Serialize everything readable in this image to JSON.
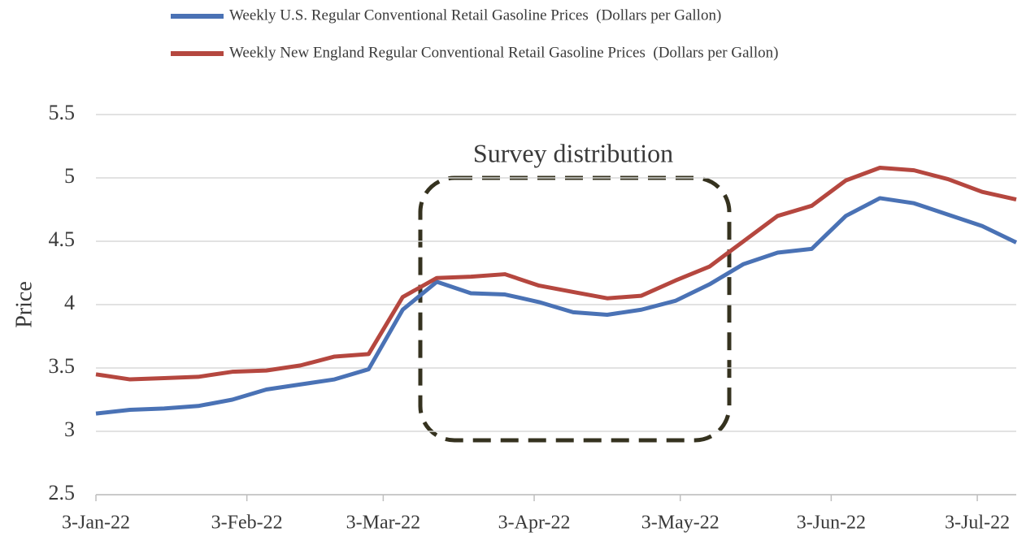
{
  "chart_data": {
    "type": "line",
    "y_label": "Price",
    "annotation": "Survey distribution",
    "x": [
      "2022-01-03",
      "2022-01-10",
      "2022-01-17",
      "2022-01-24",
      "2022-01-31",
      "2022-02-07",
      "2022-02-14",
      "2022-02-21",
      "2022-02-28",
      "2022-03-07",
      "2022-03-14",
      "2022-03-21",
      "2022-03-28",
      "2022-04-04",
      "2022-04-11",
      "2022-04-18",
      "2022-04-25",
      "2022-05-02",
      "2022-05-09",
      "2022-05-16",
      "2022-05-23",
      "2022-05-30",
      "2022-06-06",
      "2022-06-13",
      "2022-06-20",
      "2022-06-27",
      "2022-07-04",
      "2022-07-11"
    ],
    "series": [
      {
        "name": "Weekly U.S. Regular Conventional Retail Gasoline Prices  (Dollars per Gallon)",
        "color": "#4a72b5",
        "values": [
          3.14,
          3.17,
          3.18,
          3.2,
          3.25,
          3.33,
          3.37,
          3.41,
          3.49,
          3.96,
          4.18,
          4.09,
          4.08,
          4.02,
          3.94,
          3.92,
          3.96,
          4.03,
          4.16,
          4.32,
          4.41,
          4.44,
          4.7,
          4.84,
          4.8,
          4.71,
          4.62,
          4.49
        ]
      },
      {
        "name": "Weekly New England Regular Conventional Retail Gasoline Prices  (Dollars per Gallon)",
        "color": "#b5473f",
        "values": [
          3.45,
          3.41,
          3.42,
          3.43,
          3.47,
          3.48,
          3.52,
          3.59,
          3.61,
          4.06,
          4.21,
          4.22,
          4.24,
          4.15,
          4.1,
          4.05,
          4.07,
          4.19,
          4.3,
          4.5,
          4.7,
          4.78,
          4.98,
          5.08,
          5.06,
          4.99,
          4.89,
          4.83
        ]
      }
    ],
    "xlim": [
      "2022-01-03",
      "2022-07-11"
    ],
    "xticks": [
      {
        "value": "2022-01-03",
        "label": "3-Jan-22"
      },
      {
        "value": "2022-02-03",
        "label": "3-Feb-22"
      },
      {
        "value": "2022-03-03",
        "label": "3-Mar-22"
      },
      {
        "value": "2022-04-03",
        "label": "3-Apr-22"
      },
      {
        "value": "2022-05-03",
        "label": "3-May-22"
      },
      {
        "value": "2022-06-03",
        "label": "3-Jun-22"
      },
      {
        "value": "2022-07-03",
        "label": "3-Jul-22"
      }
    ],
    "ylim": [
      2.5,
      5.5
    ],
    "yticks": [
      2.5,
      3,
      3.5,
      4,
      4.5,
      5,
      5.5
    ],
    "grid": true,
    "legend": "top"
  }
}
